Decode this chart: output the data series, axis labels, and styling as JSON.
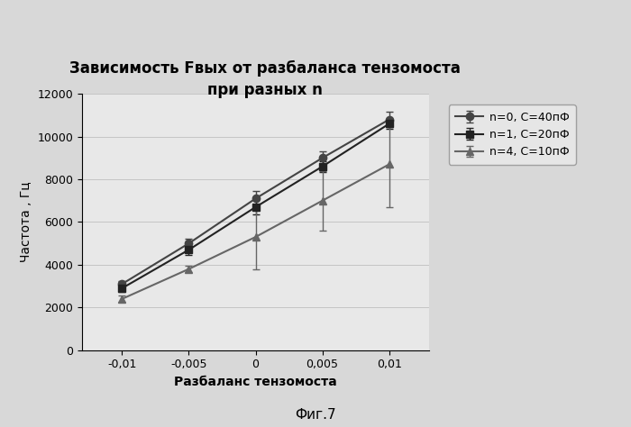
{
  "title_line1": "Зависимость Fвых от разбаланса тензомоста",
  "title_line2": "при разных n",
  "xlabel": "Разбаланс тензомоста",
  "ylabel": "Частота , Гц",
  "caption": "Фиг.7",
  "x_values": [
    -0.01,
    -0.005,
    0.0,
    0.005,
    0.01
  ],
  "series": [
    {
      "label": "n=0, C=40пФ",
      "y_values": [
        3100,
        5000,
        7100,
        9000,
        10800
      ],
      "y_err": [
        150,
        200,
        350,
        300,
        350
      ],
      "color": "#444444",
      "marker": "o",
      "linestyle": "-",
      "markersize": 6
    },
    {
      "label": "n=1, C=20пФ",
      "y_values": [
        2900,
        4700,
        6700,
        8600,
        10600
      ],
      "y_err": [
        150,
        250,
        350,
        250,
        250
      ],
      "color": "#222222",
      "marker": "s",
      "linestyle": "-",
      "markersize": 6
    },
    {
      "label": "n=4, C=10пФ",
      "y_values": [
        2400,
        3800,
        5300,
        7000,
        8700
      ],
      "y_err": [
        150,
        150,
        1500,
        1400,
        2000
      ],
      "color": "#666666",
      "marker": "^",
      "linestyle": "-",
      "markersize": 6
    }
  ],
  "xlim": [
    -0.013,
    0.013
  ],
  "ylim": [
    0,
    12000
  ],
  "yticks": [
    0,
    2000,
    4000,
    6000,
    8000,
    10000,
    12000
  ],
  "xticks": [
    -0.01,
    -0.005,
    0.0,
    0.005,
    0.01
  ],
  "xtick_labels": [
    "-0,01",
    "-0,005",
    "0",
    "0,005",
    "0,01"
  ],
  "bg_color": "#d8d8d8",
  "plot_bg_color": "#e8e8e8",
  "title_fontsize": 12,
  "label_fontsize": 10,
  "tick_fontsize": 9,
  "caption_fontsize": 11,
  "legend_fontsize": 9
}
